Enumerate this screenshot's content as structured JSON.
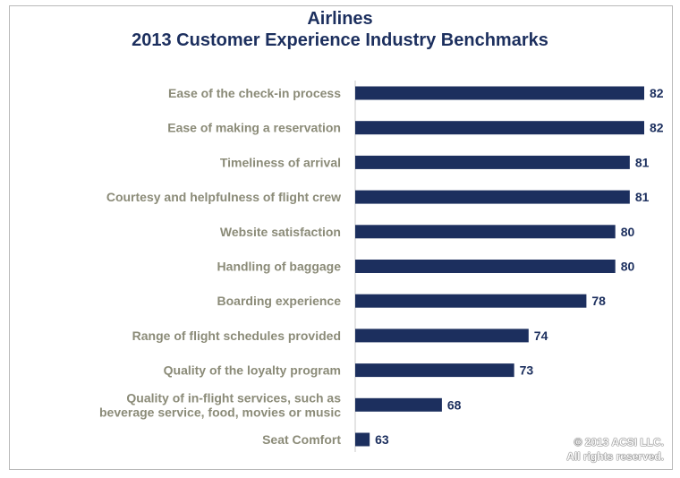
{
  "chart_data": {
    "type": "bar",
    "orientation": "horizontal",
    "title": "Airlines",
    "subtitle": "2013 Customer Experience Industry Benchmarks",
    "categories": [
      [
        "Ease of the check-in process"
      ],
      [
        "Ease of making a reservation"
      ],
      [
        "Timeliness of arrival"
      ],
      [
        "Courtesy and helpfulness of flight crew"
      ],
      [
        "Website satisfaction"
      ],
      [
        "Handling of baggage"
      ],
      [
        "Boarding experience"
      ],
      [
        "Range of flight schedules provided"
      ],
      [
        "Quality of the loyalty program"
      ],
      [
        "Quality of in-flight services, such as",
        "beverage service, food, movies or music"
      ],
      [
        "Seat Comfort"
      ]
    ],
    "values": [
      82,
      82,
      81,
      81,
      80,
      80,
      78,
      74,
      73,
      68,
      63
    ],
    "xlim": [
      62,
      82
    ],
    "bar_color": "#1c2f5e",
    "label_color": "#8b8b78",
    "grid": false,
    "legend": "none"
  },
  "copyright": {
    "line1": "© 2013 ACSI LLC.",
    "line2": "All rights reserved."
  }
}
